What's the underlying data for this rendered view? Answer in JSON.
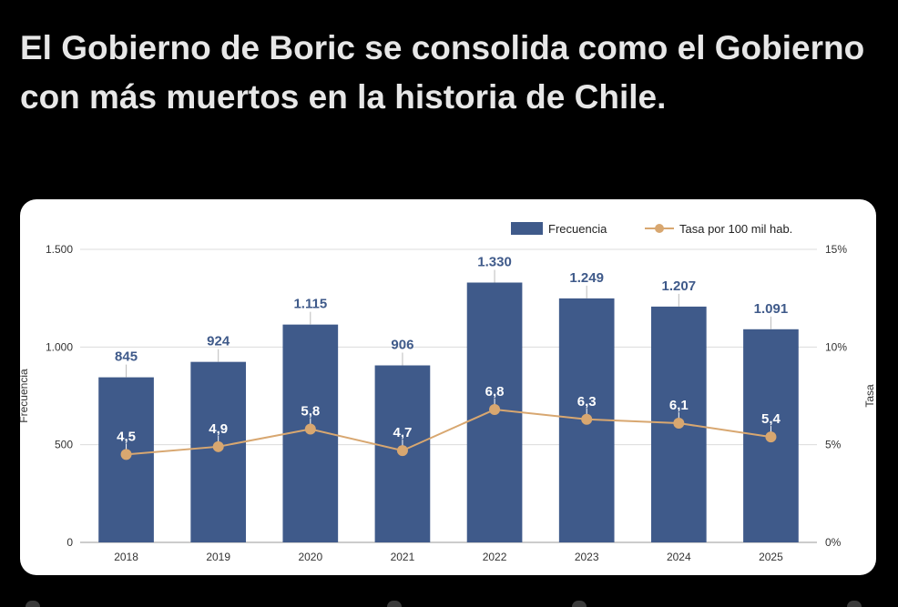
{
  "post": {
    "headline": "El Gobierno de Boric se consolida como el Gobierno con más muertos en la historia de Chile."
  },
  "colors": {
    "bar": "#3f5a8a",
    "line": "#d8a770",
    "bar_label": "#3f5a8a",
    "line_label": "#ffffff",
    "grid": "#dcdcdc",
    "axis_text": "#333333"
  },
  "chart_data": {
    "type": "bar",
    "categories": [
      "2018",
      "2019",
      "2020",
      "2021",
      "2022",
      "2023",
      "2024",
      "2025"
    ],
    "series": [
      {
        "name": "Frecuencia",
        "type": "bar",
        "axis": "left",
        "values": [
          845,
          924,
          1115,
          906,
          1330,
          1249,
          1207,
          1091
        ],
        "labels": [
          "845",
          "924",
          "1.115",
          "906",
          "1.330",
          "1.249",
          "1.207",
          "1.091"
        ]
      },
      {
        "name": "Tasa por 100 mil hab.",
        "type": "line",
        "axis": "right",
        "values": [
          4.5,
          4.9,
          5.8,
          4.7,
          6.8,
          6.3,
          6.1,
          5.4
        ],
        "labels": [
          "4,5",
          "4,9",
          "5,8",
          "4,7",
          "6,8",
          "6,3",
          "6,1",
          "5,4"
        ]
      }
    ],
    "ylabel": "Frecuencia",
    "ylabel_right": "Tasa",
    "ylim": [
      0,
      1500
    ],
    "ylim_right": [
      0,
      15
    ],
    "yticks": [
      0,
      500,
      1000,
      1500
    ],
    "ytick_labels": [
      "0",
      "500",
      "1.000",
      "1.500"
    ],
    "yticks_right": [
      0,
      5,
      10,
      15
    ],
    "ytick_labels_right": [
      "0%",
      "5%",
      "10%",
      "15%"
    ],
    "grid": true,
    "legend": "top-right"
  }
}
